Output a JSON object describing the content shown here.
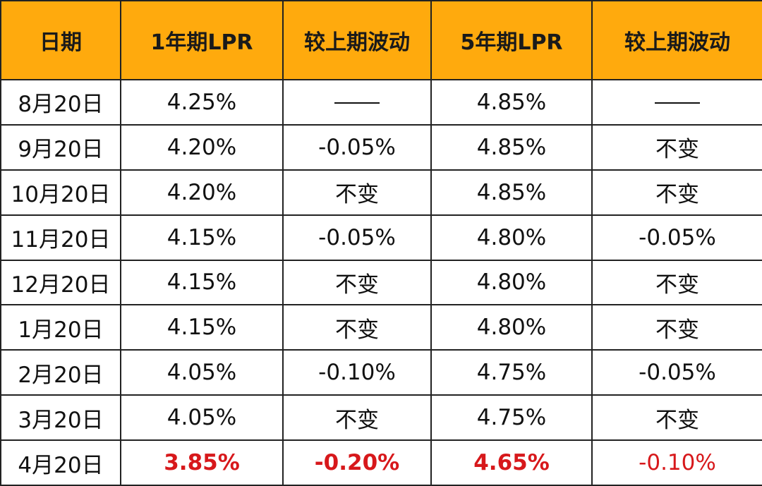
{
  "colors": {
    "header_bg": "#FFAA0D",
    "highlight": "#D7181B",
    "border": "#222222"
  },
  "header": {
    "date": "日期",
    "lpr1y": "1年期LPR",
    "change1": "较上期波动",
    "lpr5y": "5年期LPR",
    "change2": "较上期波动"
  },
  "rows": [
    {
      "date": "8月20日",
      "lpr1y": "4.25%",
      "change1": "——",
      "lpr5y": "4.85%",
      "change2": "——"
    },
    {
      "date": "9月20日",
      "lpr1y": "4.20%",
      "change1": "-0.05%",
      "lpr5y": "4.85%",
      "change2": "不变"
    },
    {
      "date": "10月20日",
      "lpr1y": "4.20%",
      "change1": "不变",
      "lpr5y": "4.85%",
      "change2": "不变"
    },
    {
      "date": "11月20日",
      "lpr1y": "4.15%",
      "change1": "-0.05%",
      "lpr5y": "4.80%",
      "change2": "-0.05%"
    },
    {
      "date": "12月20日",
      "lpr1y": "4.15%",
      "change1": "不变",
      "lpr5y": "4.80%",
      "change2": "不变"
    },
    {
      "date": "1月20日",
      "lpr1y": "4.15%",
      "change1": "不变",
      "lpr5y": "4.80%",
      "change2": "不变"
    },
    {
      "date": "2月20日",
      "lpr1y": "4.05%",
      "change1": "-0.10%",
      "lpr5y": "4.75%",
      "change2": "-0.05%"
    },
    {
      "date": "3月20日",
      "lpr1y": "4.05%",
      "change1": "不变",
      "lpr5y": "4.75%",
      "change2": "不变"
    },
    {
      "date": "4月20日",
      "lpr1y": "3.85%",
      "change1": "-0.20%",
      "lpr5y": "4.65%",
      "change2": "-0.10%"
    }
  ]
}
